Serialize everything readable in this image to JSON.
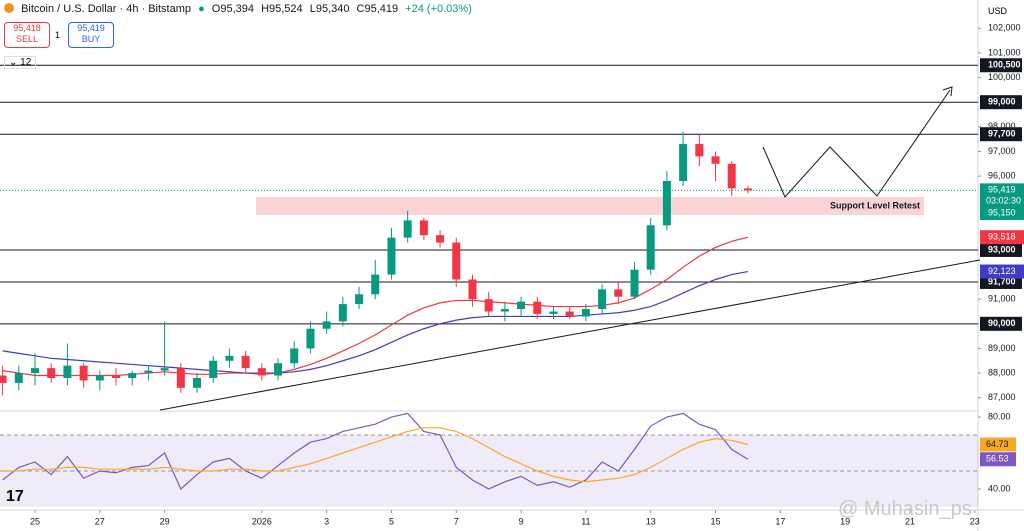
{
  "header": {
    "symbol": "Bitcoin / U.S. Dollar · 4h · Bitstamp",
    "o": "O95,394",
    "h": "H95,524",
    "l": "L95,340",
    "c": "C95,419",
    "change": "+24 (+0.03%)",
    "sell_price": "95,418",
    "sell": "SELL",
    "spread": "1",
    "buy_price": "95,419",
    "buy": "BUY",
    "interval_count": "12",
    "currency": "USD"
  },
  "watermark": "@ Muhasin_ps",
  "chart_data": {
    "type": "candlestick",
    "up_color": "#089981",
    "down_color": "#f23645",
    "open": [
      87900,
      87600,
      88000,
      88200,
      87800,
      88300,
      87700,
      87900,
      87800,
      88000,
      88100,
      88200,
      87400,
      87800,
      88500,
      88700,
      88200,
      87900,
      88400,
      89000,
      89800,
      90100,
      90800,
      91200,
      92000,
      93500,
      94200,
      93600,
      93300,
      91800,
      91000,
      90500,
      90600,
      90900,
      90400,
      90500,
      90300,
      90600,
      91400,
      91100,
      92200,
      94000,
      95800,
      97300,
      96800,
      96500,
      95500
    ],
    "high": [
      88300,
      88300,
      88800,
      88400,
      89200,
      88400,
      88100,
      88200,
      88100,
      88300,
      90100,
      88400,
      88000,
      88700,
      89000,
      88900,
      88400,
      88600,
      89300,
      90100,
      90500,
      91100,
      91500,
      92600,
      93900,
      94600,
      94300,
      93800,
      93500,
      92000,
      91300,
      90900,
      91100,
      91100,
      90700,
      90700,
      90800,
      91600,
      91700,
      92500,
      94300,
      96200,
      97800,
      97700,
      97000,
      96600,
      95600
    ],
    "low": [
      87100,
      87300,
      87500,
      87600,
      87500,
      87400,
      87300,
      87500,
      87500,
      87700,
      87900,
      87200,
      87200,
      87600,
      88200,
      88000,
      87700,
      87700,
      88200,
      88800,
      89600,
      89900,
      90600,
      91000,
      91800,
      93300,
      93400,
      93100,
      91500,
      90700,
      90300,
      90100,
      90300,
      90200,
      90200,
      90200,
      90100,
      90400,
      90800,
      91000,
      92000,
      93800,
      95600,
      96400,
      95800,
      95200,
      95300
    ],
    "close": [
      87600,
      88000,
      88200,
      87800,
      88300,
      87700,
      87900,
      87800,
      88000,
      88100,
      88200,
      87400,
      87800,
      88500,
      88700,
      88200,
      87900,
      88400,
      89000,
      89800,
      90100,
      90800,
      91200,
      92000,
      93500,
      94200,
      93600,
      93300,
      91800,
      91000,
      90500,
      90600,
      90900,
      90400,
      90500,
      90300,
      90600,
      91400,
      91100,
      92200,
      94000,
      95800,
      97300,
      96800,
      96500,
      95500,
      95419
    ],
    "series": [
      {
        "color": "#f23645",
        "values": [
          88100,
          88000,
          87900,
          87900,
          87900,
          87900,
          87900,
          87900,
          87950,
          88000,
          88050,
          88000,
          87950,
          87950,
          88000,
          88000,
          87950,
          88000,
          88150,
          88350,
          88600,
          88900,
          89200,
          89550,
          89950,
          90350,
          90650,
          90850,
          90950,
          90950,
          90900,
          90850,
          90800,
          90750,
          90700,
          90700,
          90700,
          90750,
          90850,
          91050,
          91400,
          91800,
          92300,
          92750,
          93100,
          93350,
          93518
        ],
        "value_label": "93,518"
      },
      {
        "color": "#3d3dc4",
        "values": [
          88900,
          88800,
          88700,
          88600,
          88550,
          88500,
          88450,
          88400,
          88350,
          88300,
          88250,
          88200,
          88150,
          88100,
          88050,
          88000,
          88000,
          88000,
          88050,
          88150,
          88300,
          88500,
          88700,
          88950,
          89250,
          89550,
          89800,
          90000,
          90150,
          90250,
          90300,
          90300,
          90300,
          90300,
          90300,
          90300,
          90350,
          90400,
          90450,
          90550,
          90700,
          90950,
          91250,
          91550,
          91800,
          92000,
          92123
        ],
        "value_label": "92,123"
      }
    ],
    "ylim": [
      86500,
      103150
    ],
    "yticks": [
      {
        "value": 102000,
        "label": "102,000"
      },
      {
        "value": 101000,
        "label": "101,000"
      },
      {
        "value": 100000,
        "label": "100,000"
      },
      {
        "value": 98000,
        "label": "98,000"
      },
      {
        "value": 97000,
        "label": "97,000"
      },
      {
        "value": 96000,
        "label": "96,000"
      },
      {
        "value": 91000,
        "label": "91,000"
      },
      {
        "value": 89000,
        "label": "89,000"
      },
      {
        "value": 88000,
        "label": "88,000"
      },
      {
        "value": 87000,
        "label": "87,000"
      }
    ],
    "levels": [
      {
        "value": 100500,
        "label": "100,500"
      },
      {
        "value": 99000,
        "label": "99,000"
      },
      {
        "value": 97700,
        "label": "97,700"
      },
      {
        "value": 93000,
        "label": "93,000"
      },
      {
        "value": 91700,
        "label": "91,700"
      },
      {
        "value": 90000,
        "label": "90,000"
      }
    ],
    "last_price": {
      "value": 95419,
      "label": "95,419",
      "countdown": "03:02:30",
      "color": "#089981"
    },
    "zone": {
      "label": "Support Level Retest",
      "top": 95150,
      "bottom": 94420,
      "top_label": "95,150",
      "color": "#f8c8cc"
    },
    "xlim": [
      -0.16,
      60.2
    ],
    "xticks": [
      {
        "value": 2,
        "label": "25"
      },
      {
        "value": 6,
        "label": "27"
      },
      {
        "value": 10,
        "label": "29"
      },
      {
        "value": 16,
        "label": "2026"
      },
      {
        "value": 20,
        "label": "3"
      },
      {
        "value": 24,
        "label": "5"
      },
      {
        "value": 28,
        "label": "7"
      },
      {
        "value": 32,
        "label": "9"
      },
      {
        "value": 36,
        "label": "11"
      },
      {
        "value": 40,
        "label": "13"
      },
      {
        "value": 44,
        "label": "15"
      },
      {
        "value": 48,
        "label": "17"
      },
      {
        "value": 52,
        "label": "19"
      },
      {
        "value": 56,
        "label": "21"
      },
      {
        "value": 60,
        "label": "23"
      }
    ],
    "rsi": {
      "ylim": [
        28.3,
        82.8
      ],
      "band": [
        30,
        70
      ],
      "dashed": [
        70,
        50
      ],
      "yticks": [
        {
          "value": 80,
          "label": "80.00"
        },
        {
          "value": 40,
          "label": "40.00"
        }
      ],
      "series": [
        {
          "color": "#7e57c2",
          "values": [
            45,
            52,
            55,
            48,
            58,
            46,
            50,
            49,
            52,
            53,
            60,
            40,
            48,
            55,
            57,
            50,
            46,
            53,
            60,
            66,
            68,
            72,
            74,
            76,
            80,
            82,
            72,
            70,
            52,
            45,
            40,
            44,
            47,
            42,
            44,
            41,
            45,
            55,
            50,
            62,
            75,
            80,
            82,
            76,
            73,
            62,
            56.53
          ],
          "value_label": "56.53"
        },
        {
          "color": "#f9a825",
          "values": [
            50,
            50,
            51,
            51,
            52,
            52,
            51,
            51,
            51,
            51,
            52,
            51,
            50,
            50,
            51,
            51,
            50,
            50,
            52,
            54,
            57,
            60,
            63,
            66,
            69,
            72,
            74,
            74,
            72,
            68,
            63,
            58,
            54,
            50,
            47,
            45,
            44,
            45,
            46,
            48,
            52,
            57,
            62,
            66,
            68,
            67,
            64.73
          ],
          "value_label": "64.73"
        }
      ]
    }
  }
}
